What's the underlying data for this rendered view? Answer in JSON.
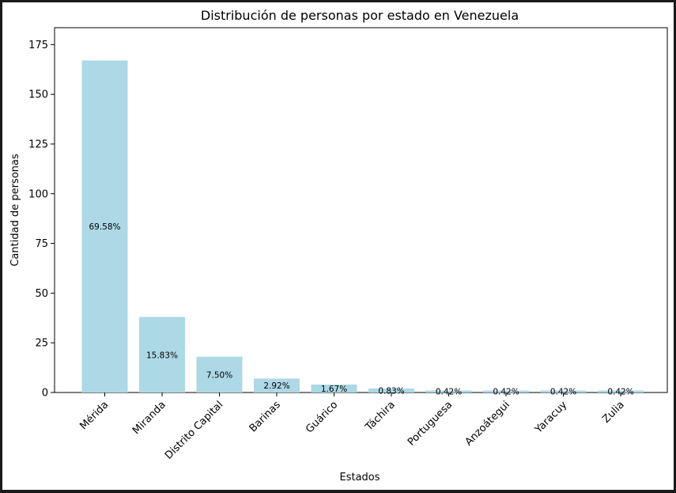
{
  "chart_data": {
    "type": "bar",
    "title": "Distribución de personas por estado en Venezuela",
    "xlabel": "Estados",
    "ylabel": "Cantidad de personas",
    "categories": [
      "Mérida",
      "Miranda",
      "Distrito Capital",
      "Barinas",
      "Guárico",
      "Táchira",
      "Portuguesa",
      "Anzoátegui",
      "Yaracuy",
      "Zulia"
    ],
    "values": [
      167,
      38,
      18,
      7,
      4,
      2,
      1,
      1,
      1,
      1
    ],
    "labels": [
      "69.58%",
      "15.83%",
      "7.50%",
      "2.92%",
      "1.67%",
      "0.83%",
      "0.42%",
      "0.42%",
      "0.42%",
      "0.42%"
    ],
    "yticks": [
      0,
      25,
      50,
      75,
      100,
      125,
      150,
      175
    ],
    "ylim": [
      0,
      183.5
    ],
    "bar_color": "#add8e6",
    "grid": false
  }
}
